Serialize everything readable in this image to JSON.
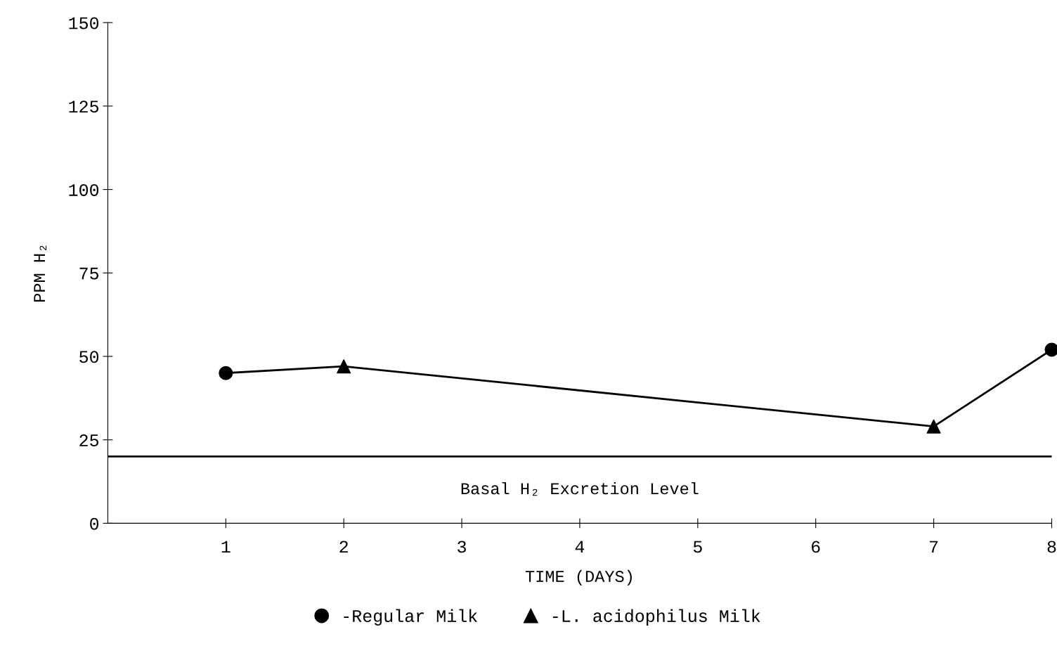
{
  "chart_data": {
    "type": "line",
    "xlabel": "TIME (DAYS)",
    "ylabel": "PPM H₂",
    "x": [
      1,
      2,
      7,
      8
    ],
    "series": [
      {
        "color": "#000000",
        "marker": "none",
        "values": [
          45,
          47,
          29,
          52
        ]
      },
      {
        "type": "scatter",
        "name": "-Regular Milk",
        "color": "#000000",
        "marker": "circle",
        "x": [
          1,
          8
        ],
        "values": [
          45,
          52
        ]
      },
      {
        "type": "scatter",
        "name": "-L. acidophilus Milk",
        "color": "#000000",
        "marker": "triangle",
        "x": [
          2,
          7
        ],
        "values": [
          47,
          29
        ]
      }
    ],
    "xlim": [
      0,
      8
    ],
    "xticks": [
      1,
      2,
      3,
      4,
      5,
      6,
      7,
      8
    ],
    "ylim": [
      0,
      150
    ],
    "yticks": [
      0,
      25,
      50,
      75,
      100,
      125,
      150
    ],
    "ref_lines": [
      {
        "axis": "y",
        "value": 20,
        "label": "Basal H₂ Excretion Level",
        "color": "#000000",
        "line_style": "solid"
      }
    ],
    "grid": false,
    "legend": "bottom"
  }
}
